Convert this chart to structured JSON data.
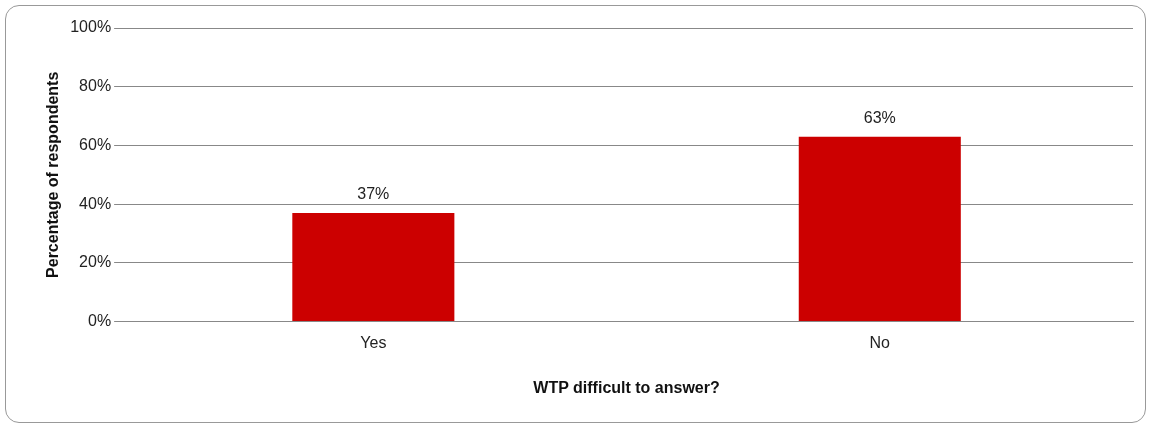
{
  "chart_data": {
    "type": "bar",
    "xlabel": "WTP difficult to answer?",
    "ylabel": "Percentage of respondents",
    "categories": [
      "Yes",
      "No"
    ],
    "values": [
      37,
      63
    ],
    "value_labels": [
      "37%",
      "63%"
    ],
    "color": "#cc0000",
    "ylim": [
      0,
      100
    ],
    "yticks": [
      {
        "value": 0,
        "label": "0%"
      },
      {
        "value": 20,
        "label": "20%"
      },
      {
        "value": 40,
        "label": "40%"
      },
      {
        "value": 60,
        "label": "60%"
      },
      {
        "value": 80,
        "label": "80%"
      },
      {
        "value": 100,
        "label": "100%"
      }
    ],
    "grid": "y"
  }
}
